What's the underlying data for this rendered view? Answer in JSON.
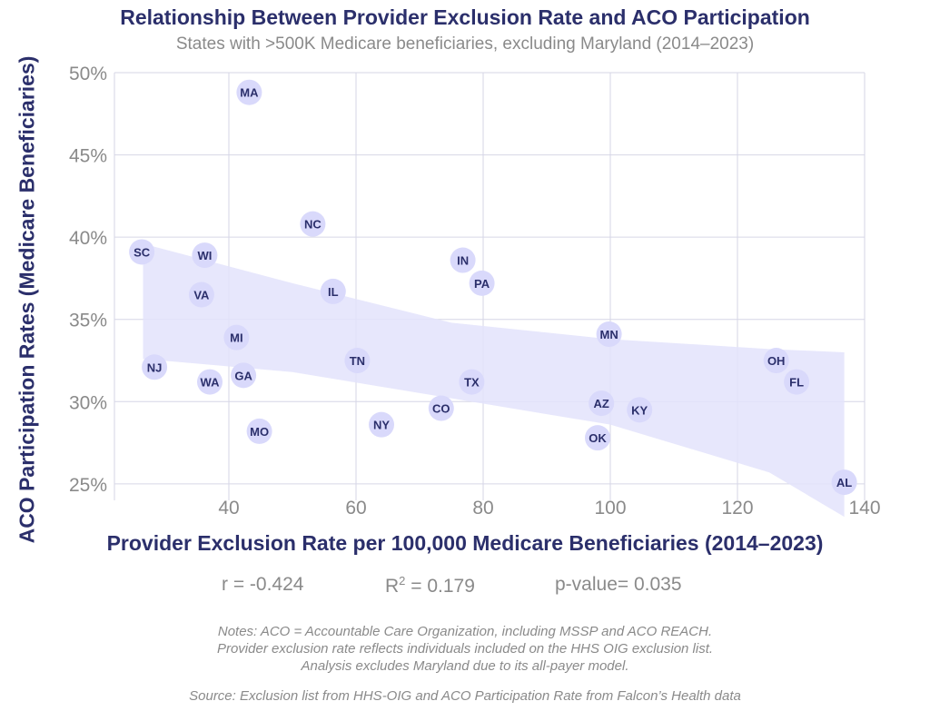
{
  "chart_data": {
    "type": "scatter",
    "title": "Relationship Between Provider Exclusion Rate and ACO Participation",
    "subtitle": "States with >500K Medicare beneficiaries, excluding Maryland (2014–2023)",
    "xlabel": "Provider Exclusion Rate per 100,000 Medicare Beneficiaries (2014–2023)",
    "ylabel": "ACO Participation Rates (Medicare Beneficiaries)",
    "xlim": [
      22,
      140
    ],
    "ylim": [
      24,
      50
    ],
    "x_ticks": [
      40,
      60,
      80,
      100,
      120,
      140
    ],
    "y_ticks": [
      25,
      30,
      35,
      40,
      45,
      50
    ],
    "y_tick_labels": [
      "25%",
      "30%",
      "35%",
      "40%",
      "45%",
      "50%"
    ],
    "grid": true,
    "points": [
      {
        "label": "MA",
        "x": 43.2,
        "y": 48.8
      },
      {
        "label": "NC",
        "x": 53.2,
        "y": 40.8
      },
      {
        "label": "SC",
        "x": 26.3,
        "y": 39.1
      },
      {
        "label": "WI",
        "x": 36.2,
        "y": 38.9
      },
      {
        "label": "IN",
        "x": 76.8,
        "y": 38.6
      },
      {
        "label": "PA",
        "x": 79.8,
        "y": 37.2
      },
      {
        "label": "VA",
        "x": 35.7,
        "y": 36.5
      },
      {
        "label": "IL",
        "x": 56.4,
        "y": 36.7
      },
      {
        "label": "MI",
        "x": 41.2,
        "y": 33.9
      },
      {
        "label": "MN",
        "x": 99.8,
        "y": 34.1
      },
      {
        "label": "NJ",
        "x": 28.3,
        "y": 32.1
      },
      {
        "label": "TN",
        "x": 60.2,
        "y": 32.5
      },
      {
        "label": "GA",
        "x": 42.3,
        "y": 31.6
      },
      {
        "label": "WA",
        "x": 37.0,
        "y": 31.2
      },
      {
        "label": "TX",
        "x": 78.2,
        "y": 31.2
      },
      {
        "label": "OH",
        "x": 126.1,
        "y": 32.5
      },
      {
        "label": "FL",
        "x": 129.3,
        "y": 31.2
      },
      {
        "label": "AZ",
        "x": 98.6,
        "y": 29.9
      },
      {
        "label": "CO",
        "x": 73.4,
        "y": 29.6
      },
      {
        "label": "KY",
        "x": 104.6,
        "y": 29.5
      },
      {
        "label": "NY",
        "x": 64.0,
        "y": 28.6
      },
      {
        "label": "MO",
        "x": 44.8,
        "y": 28.2
      },
      {
        "label": "OK",
        "x": 98.0,
        "y": 27.8
      },
      {
        "label": "AL",
        "x": 136.8,
        "y": 25.1
      }
    ],
    "confidence_band": {
      "x": [
        26.5,
        50,
        75,
        100,
        125,
        136.8
      ],
      "upper": [
        39.6,
        37.2,
        34.8,
        33.8,
        33.2,
        33.0
      ],
      "lower": [
        32.6,
        31.8,
        30.2,
        28.6,
        25.7,
        23.0
      ]
    },
    "stats": {
      "r": "r = -0.424",
      "r2_prefix": "R",
      "r2_sup": "2",
      "r2_value": " = 0.179",
      "p": "p-value= 0.035"
    },
    "notes": [
      "Notes: ACO = Accountable Care Organization, including MSSP and ACO REACH.",
      "Provider exclusion rate reflects individuals included on the HHS OIG exclusion list.",
      "Analysis excludes Maryland due to its all-payer model."
    ],
    "source": "Source: Exclusion list from HHS-OIG and ACO Participation Rate from Falcon’s Health data",
    "colors": {
      "title": "#2b2f6b",
      "point_fill": "#d9d9fb",
      "point_text": "#2b2f6b",
      "band": "#e3e3fb",
      "grid": "#d6d6e6",
      "muted": "#8a8a8a"
    }
  }
}
